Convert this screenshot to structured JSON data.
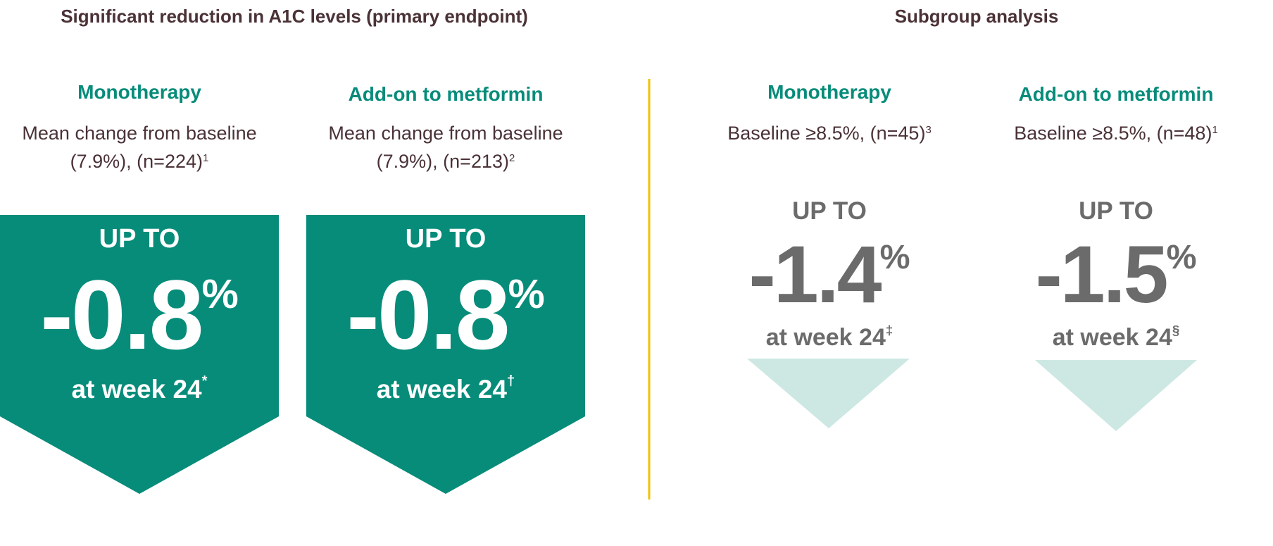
{
  "colors": {
    "teal": "#078c7a",
    "light_teal": "#cde8e3",
    "text_dark": "#4a3236",
    "gray": "#6b6b6b",
    "divider": "#f2c200"
  },
  "primary": {
    "title": "Significant reduction in A1C levels (primary endpoint)",
    "cards": [
      {
        "subtitle": "Monotherapy",
        "desc_line1": "Mean change from baseline",
        "desc_line2": "(7.9%), (n=224)",
        "ref": "1",
        "up_to": "UP TO",
        "value": "-0.8",
        "unit": "%",
        "week": "at week 24",
        "mark": "*"
      },
      {
        "subtitle": "Add-on to metformin",
        "desc_line1": "Mean change from baseline",
        "desc_line2": "(7.9%), (n=213)",
        "ref": "2",
        "up_to": "UP TO",
        "value": "-0.8",
        "unit": "%",
        "week": "at week 24",
        "mark": "†"
      }
    ]
  },
  "subgroup": {
    "title": "Subgroup analysis",
    "cards": [
      {
        "subtitle": "Monotherapy",
        "desc": "Baseline ≥8.5%, (n=45)",
        "ref": "3",
        "up_to": "UP TO",
        "value": "-1.4",
        "unit": "%",
        "week": "at week 24",
        "mark": "‡"
      },
      {
        "subtitle": "Add-on to metformin",
        "desc": "Baseline ≥8.5%, (n=48)",
        "ref": "1",
        "up_to": "UP TO",
        "value": "-1.5",
        "unit": "%",
        "week": "at week 24",
        "mark": "§"
      }
    ]
  }
}
